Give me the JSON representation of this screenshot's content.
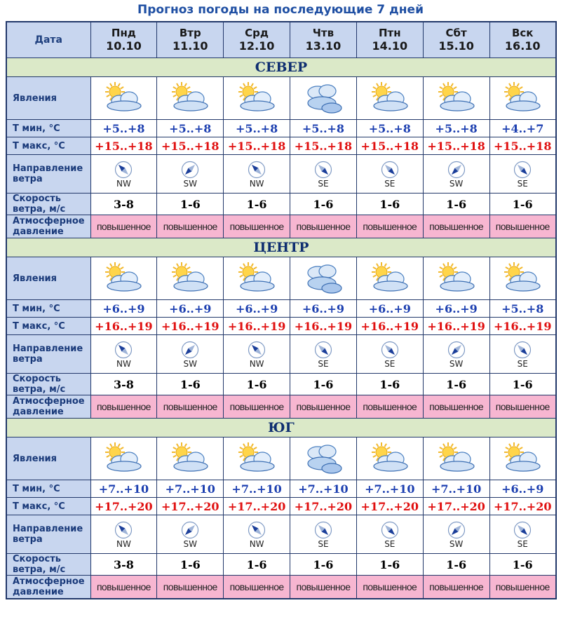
{
  "page_title": "Прогноз погоды на последующие 7 дней",
  "header": {
    "date_label": "Дата"
  },
  "days": [
    {
      "name": "Пнд",
      "date": "10.10"
    },
    {
      "name": "Втр",
      "date": "11.10"
    },
    {
      "name": "Срд",
      "date": "12.10"
    },
    {
      "name": "Чтв",
      "date": "13.10"
    },
    {
      "name": "Птн",
      "date": "14.10"
    },
    {
      "name": "Сбт",
      "date": "15.10"
    },
    {
      "name": "Вск",
      "date": "16.10"
    }
  ],
  "row_labels": {
    "phenomena": "Явления",
    "tmin": "Т мин, °С",
    "tmax": "Т макс, °С",
    "wind_dir": "Направление ветра",
    "wind_speed": "Скорость ветра, м/с",
    "pressure": "Атмосферное давление"
  },
  "colors": {
    "header_bg": "#c8d6ef",
    "region_bg": "#dbe9c8",
    "tmin": "#1c3fb0",
    "tmax": "#e01010",
    "pressure_bg": "#f7b6d1"
  },
  "regions": [
    {
      "name": "СЕВЕР",
      "icons": [
        "partly-cloudy-icon",
        "partly-cloudy-icon",
        "partly-cloudy-icon",
        "cloudy-icon",
        "partly-cloudy-icon",
        "partly-cloudy-icon",
        "partly-cloudy-icon"
      ],
      "tmin": [
        "+5..+8",
        "+5..+8",
        "+5..+8",
        "+5..+8",
        "+5..+8",
        "+5..+8",
        "+4..+7"
      ],
      "tmax": [
        "+15..+18",
        "+15..+18",
        "+15..+18",
        "+15..+18",
        "+15..+18",
        "+15..+18",
        "+15..+18"
      ],
      "wind_dir": [
        "NW",
        "SW",
        "NW",
        "SE",
        "SE",
        "SW",
        "SE"
      ],
      "wind_speed": [
        "3-8",
        "1-6",
        "1-6",
        "1-6",
        "1-6",
        "1-6",
        "1-6"
      ],
      "pressure": [
        "повышенное",
        "повышенное",
        "повышенное",
        "повышенное",
        "повышенное",
        "повышенное",
        "повышенное"
      ]
    },
    {
      "name": "ЦЕНТР",
      "icons": [
        "partly-cloudy-icon",
        "partly-cloudy-icon",
        "partly-cloudy-icon",
        "cloudy-icon",
        "partly-cloudy-icon",
        "partly-cloudy-icon",
        "partly-cloudy-icon"
      ],
      "tmin": [
        "+6..+9",
        "+6..+9",
        "+6..+9",
        "+6..+9",
        "+6..+9",
        "+6..+9",
        "+5..+8"
      ],
      "tmax": [
        "+16..+19",
        "+16..+19",
        "+16..+19",
        "+16..+19",
        "+16..+19",
        "+16..+19",
        "+16..+19"
      ],
      "wind_dir": [
        "NW",
        "SW",
        "NW",
        "SE",
        "SE",
        "SW",
        "SE"
      ],
      "wind_speed": [
        "3-8",
        "1-6",
        "1-6",
        "1-6",
        "1-6",
        "1-6",
        "1-6"
      ],
      "pressure": [
        "повышенное",
        "повышенное",
        "повышенное",
        "повышенное",
        "повышенное",
        "повышенное",
        "повышенное"
      ]
    },
    {
      "name": "ЮГ",
      "icons": [
        "partly-cloudy-icon",
        "partly-cloudy-icon",
        "partly-cloudy-icon",
        "cloudy-icon",
        "partly-cloudy-icon",
        "partly-cloudy-icon",
        "partly-cloudy-icon"
      ],
      "tmin": [
        "+7..+10",
        "+7..+10",
        "+7..+10",
        "+7..+10",
        "+7..+10",
        "+7..+10",
        "+6..+9"
      ],
      "tmax": [
        "+17..+20",
        "+17..+20",
        "+17..+20",
        "+17..+20",
        "+17..+20",
        "+17..+20",
        "+17..+20"
      ],
      "wind_dir": [
        "NW",
        "SW",
        "NW",
        "SE",
        "SE",
        "SW",
        "SE"
      ],
      "wind_speed": [
        "3-8",
        "1-6",
        "1-6",
        "1-6",
        "1-6",
        "1-6",
        "1-6"
      ],
      "pressure": [
        "повышенное",
        "повышенное",
        "повышенное",
        "повышенное",
        "повышенное",
        "повышенное",
        "повышенное"
      ]
    }
  ]
}
